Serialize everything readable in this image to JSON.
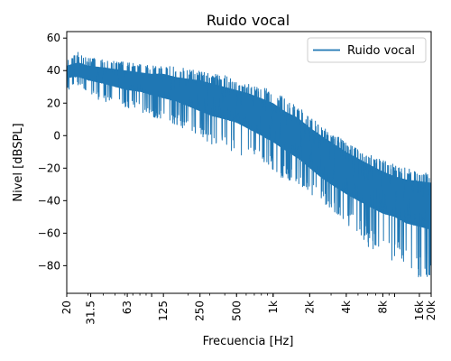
{
  "chart_data": {
    "type": "line",
    "title": "Ruido vocal",
    "xlabel": "Frecuencia [Hz]",
    "ylabel": "Nivel [dBSPL]",
    "x_scale": "log",
    "xlim": [
      20,
      20000
    ],
    "ylim": [
      -97,
      64
    ],
    "x_ticks": [
      20,
      31.5,
      63,
      125,
      250,
      500,
      1000,
      2000,
      4000,
      8000,
      16000,
      20000
    ],
    "x_tick_labels": [
      "20",
      "31.5",
      "63",
      "125",
      "250",
      "500",
      "1k",
      "2k",
      "4k",
      "8k",
      "16k",
      "20k"
    ],
    "y_ticks": [
      -80,
      -60,
      -40,
      -20,
      0,
      20,
      40,
      60
    ],
    "y_tick_labels": [
      "−80",
      "−60",
      "−40",
      "−20",
      "0",
      "20",
      "40",
      "60"
    ],
    "grid": false,
    "legend_position": "top-right",
    "series": [
      {
        "name": "Ruido vocal",
        "color": "#1f77b4",
        "envelope": {
          "x": [
            20,
            22,
            25,
            30,
            40,
            50,
            63,
            80,
            100,
            125,
            160,
            200,
            250,
            315,
            400,
            500,
            630,
            800,
            1000,
            1250,
            1600,
            2000,
            2500,
            3150,
            4000,
            5000,
            6300,
            8000,
            10000,
            12500,
            16000,
            20000
          ],
          "upper": [
            47,
            49,
            52,
            48,
            47,
            46,
            45,
            44,
            43,
            43,
            42,
            41,
            40,
            38,
            37,
            34,
            32,
            30,
            28,
            23,
            18,
            12,
            6,
            1,
            -4,
            -8,
            -12,
            -15,
            -18,
            -20,
            -22,
            -23
          ],
          "lower": [
            25,
            30,
            31,
            27,
            20,
            20,
            17,
            14,
            12,
            9,
            6,
            2,
            -2,
            -6,
            -8,
            -12,
            -14,
            -20,
            -22,
            -28,
            -30,
            -36,
            -40,
            -48,
            -55,
            -60,
            -70,
            -72,
            -78,
            -82,
            -88,
            -90
          ],
          "body_upper": [
            43,
            44,
            45,
            43,
            42,
            41,
            40,
            39,
            38,
            38,
            36,
            35,
            34,
            32,
            30,
            28,
            26,
            23,
            20,
            15,
            11,
            5,
            0,
            -5,
            -10,
            -14,
            -18,
            -22,
            -25,
            -27,
            -28,
            -29
          ],
          "body_lower": [
            35,
            36,
            36,
            34,
            32,
            30,
            28,
            27,
            25,
            23,
            21,
            18,
            15,
            12,
            10,
            8,
            4,
            0,
            -4,
            -9,
            -14,
            -20,
            -26,
            -31,
            -36,
            -40,
            -44,
            -48,
            -50,
            -54,
            -56,
            -58
          ]
        }
      }
    ]
  }
}
